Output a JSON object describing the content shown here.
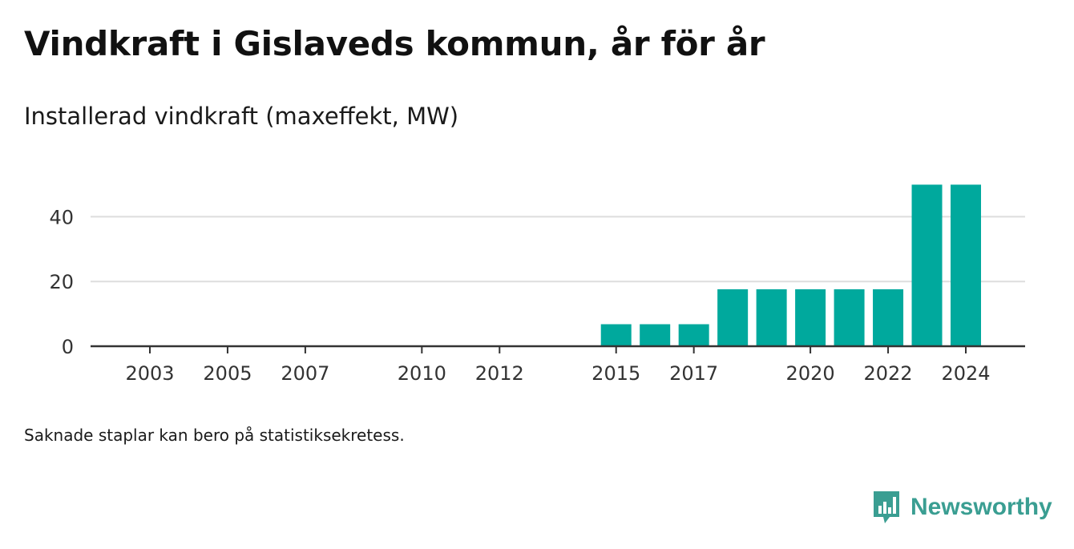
{
  "header": {
    "title": "Vindkraft i Gislaveds kommun, år för år",
    "subtitle": "Installerad vindkraft (maxeffekt, MW)"
  },
  "footer": {
    "note": "Saknade staplar kan bero på statistiksekretess.",
    "brand": "Newsworthy",
    "brand_icon": "newsworthy-logo-icon"
  },
  "colors": {
    "bar": "#00a99d",
    "grid": "#dddddd",
    "axis": "#333333",
    "brand": "#3a9e92"
  },
  "chart_data": {
    "type": "bar",
    "title": "Installerad vindkraft (maxeffekt, MW)",
    "xlabel": "",
    "ylabel": "",
    "x": [
      2003,
      2004,
      2005,
      2006,
      2007,
      2008,
      2009,
      2010,
      2011,
      2012,
      2013,
      2014,
      2015,
      2016,
      2017,
      2018,
      2019,
      2020,
      2021,
      2022,
      2023,
      2024
    ],
    "values": [
      0,
      0,
      0,
      0,
      0,
      null,
      null,
      0,
      0,
      0,
      null,
      null,
      6.8,
      6.8,
      6.8,
      17.6,
      17.6,
      17.6,
      17.6,
      17.6,
      49.9,
      49.9
    ],
    "x_ticks": [
      "2003",
      "2005",
      "2007",
      "2010",
      "2012",
      "2015",
      "2017",
      "2020",
      "2022",
      "2024"
    ],
    "y_ticks": [
      0,
      20,
      40
    ],
    "ylim": [
      0,
      50
    ],
    "grid": true
  }
}
